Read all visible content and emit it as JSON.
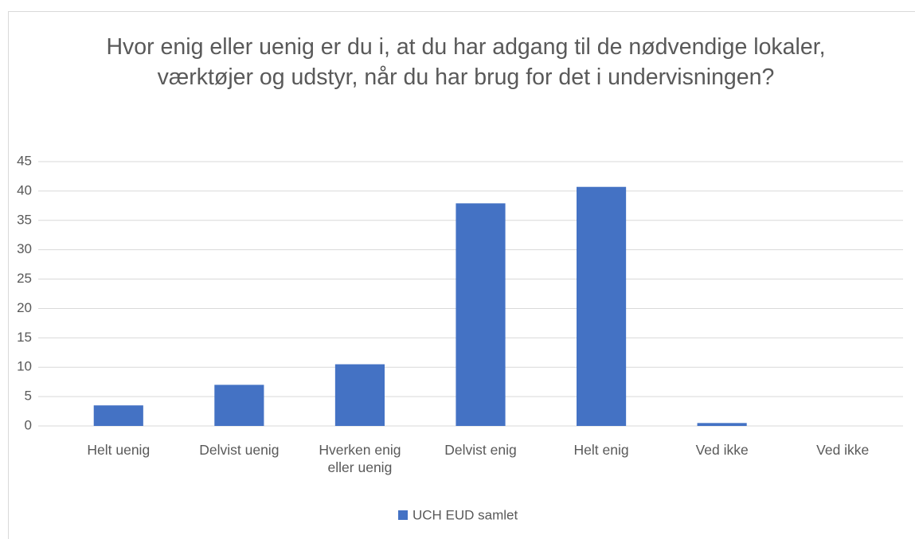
{
  "chart_data": {
    "type": "bar",
    "title": "Hvor enig eller uenig er du i, at du har adgang til de nødvendige lokaler, værktøjer og udstyr, når du har brug for det i undervisningen?",
    "categories": [
      "Helt uenig",
      "Delvist uenig",
      "Hverken enig eller uenig",
      "Delvist enig",
      "Helt enig",
      "Ved ikke",
      "Ved ikke"
    ],
    "series": [
      {
        "name": "UCH EUD samlet",
        "color": "#4472c4",
        "values": [
          3.5,
          7,
          10.5,
          37.9,
          40.7,
          0.5,
          0
        ]
      }
    ],
    "ylim": [
      0,
      45
    ],
    "yticks": [
      0,
      5,
      10,
      15,
      20,
      25,
      30,
      35,
      40,
      45
    ],
    "grid": true,
    "legend": "bottom"
  }
}
